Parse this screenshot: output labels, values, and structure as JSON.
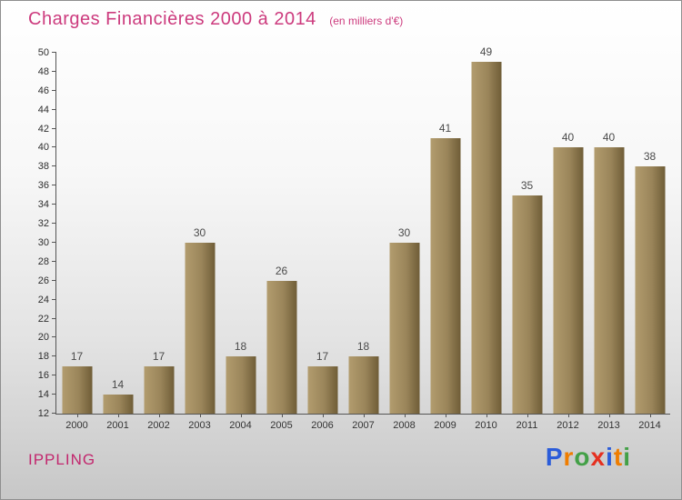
{
  "title": "Charges Financières 2000 à 2014",
  "subtitle": "(en milliers d'€)",
  "colors": {
    "title_pink": "#cc3a7d",
    "commune_pink": "#c2266d",
    "bar_light": "#b29c6e",
    "bar_dark": "#6f5d37",
    "axis": "#555555",
    "value_label": "#4a4a4a"
  },
  "footer": {
    "commune": "IPPLING",
    "logo_text": "Proxiti",
    "logo_letters": [
      {
        "ch": "P",
        "color": "#2b5cd9"
      },
      {
        "ch": "r",
        "color": "#ef7d00"
      },
      {
        "ch": "o",
        "color": "#43a047"
      },
      {
        "ch": "x",
        "color": "#e53020"
      },
      {
        "ch": "i",
        "color": "#2b5cd9"
      },
      {
        "ch": "t",
        "color": "#ef7d00"
      },
      {
        "ch": "i",
        "color": "#43a047"
      }
    ]
  },
  "chart_data": {
    "type": "bar",
    "title": "Charges Financières 2000 à 2014",
    "subtitle": "(en milliers d'€)",
    "categories": [
      "2000",
      "2001",
      "2002",
      "2003",
      "2004",
      "2005",
      "2006",
      "2007",
      "2008",
      "2009",
      "2010",
      "2011",
      "2012",
      "2013",
      "2014"
    ],
    "values": [
      17,
      14,
      17,
      30,
      18,
      26,
      17,
      18,
      30,
      41,
      49,
      35,
      40,
      40,
      38
    ],
    "xlabel": "",
    "ylabel": "",
    "ylim": [
      12,
      50
    ],
    "ytick_step": 2,
    "grid": false,
    "legend": false,
    "data_labels": true
  }
}
